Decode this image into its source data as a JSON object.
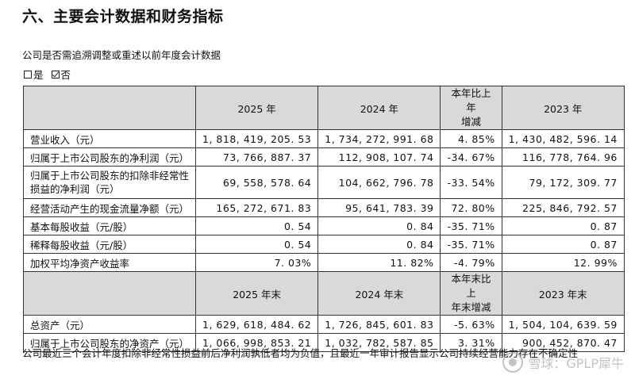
{
  "section_title": "六、主要会计数据和财务指标",
  "question": "公司是否需追溯调整或重述以前年度会计数据",
  "options": {
    "yes": "是",
    "no": "否",
    "selected": "no"
  },
  "table1": {
    "headers": [
      "",
      "2025 年",
      "2024 年",
      "本年比上年\n增减",
      "2023 年"
    ],
    "rows": [
      {
        "label": "营业收入（元）",
        "cells": [
          "1, 818, 419, 205. 53",
          "1, 734, 272, 991. 68",
          "4. 85%",
          "1, 430, 482, 596. 14"
        ]
      },
      {
        "label": "归属于上市公司股东的净利润（元）",
        "cells": [
          "73, 766, 887. 37",
          "112, 908, 107. 74",
          "-34. 67%",
          "116, 778, 764. 96"
        ]
      },
      {
        "label": "归属于上市公司股东的扣除非经常性损益的净利润（元）",
        "cells": [
          "69, 558, 578. 64",
          "104, 662, 796. 78",
          "-33. 54%",
          "79, 172, 309. 77"
        ]
      },
      {
        "label": "经营活动产生的现金流量净额（元）",
        "cells": [
          "165, 272, 671. 83",
          "95, 641, 783. 39",
          "72. 80%",
          "225, 846, 792. 57"
        ]
      },
      {
        "label": "基本每股收益（元/股）",
        "cells": [
          "0. 54",
          "0. 84",
          "-35. 71%",
          "0. 87"
        ]
      },
      {
        "label": "稀释每股收益（元/股）",
        "cells": [
          "0. 54",
          "0. 84",
          "-35. 71%",
          "0. 87"
        ]
      },
      {
        "label": "加权平均净资产收益率",
        "cells": [
          "7. 03%",
          "11. 82%",
          "-4. 79%",
          "12. 99%"
        ]
      }
    ]
  },
  "table2": {
    "headers": [
      "",
      "2025 年末",
      "2024 年末",
      "本年末比上\n年末增减",
      "2023 年末"
    ],
    "rows": [
      {
        "label": "总资产（元）",
        "cells": [
          "1, 629, 618, 484. 62",
          "1, 726, 845, 601. 83",
          "-5. 63%",
          "1, 504, 104, 639. 59"
        ]
      },
      {
        "label": "归属于上市公司股东的净资产（元）",
        "cells": [
          "1, 066, 998, 853. 21",
          "1, 032, 782, 587. 85",
          "3. 31%",
          "900, 452, 870. 47"
        ]
      }
    ]
  },
  "footnote": "公司最近三个会计年度扣除非经常性损益前后净利润孰低者均为负值，且最近一年审计报告显示公司持续经营能力存在不确定性",
  "watermark": "雪球：GPLP犀牛"
}
